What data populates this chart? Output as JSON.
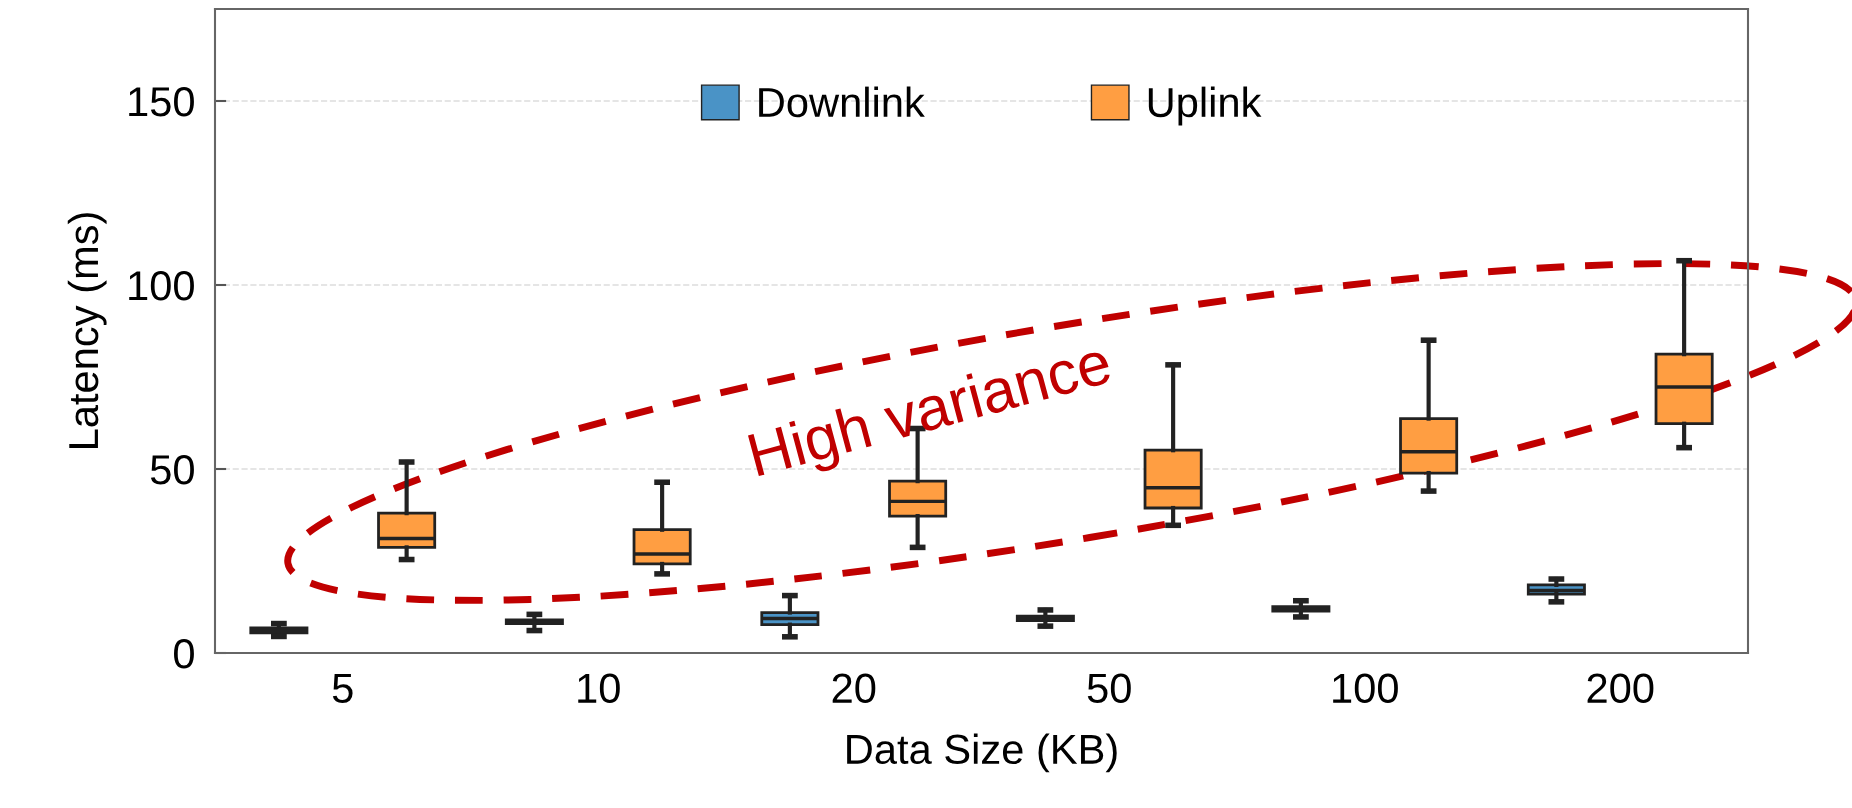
{
  "chart_data": {
    "type": "box",
    "xlabel": "Data Size (KB)",
    "ylabel": "Latency (ms)",
    "categories": [
      "5",
      "10",
      "20",
      "50",
      "100",
      "200"
    ],
    "ylim": [
      0,
      175
    ],
    "yticks": [
      0,
      50,
      100,
      150
    ],
    "grid": "y",
    "legend": "top",
    "annotations": [
      "High variance"
    ],
    "series": [
      {
        "name": "Downlink",
        "color": "#4a93c6",
        "boxes": [
          {
            "low": 4.5,
            "q1": 5.5,
            "median": 6.2,
            "q3": 6.8,
            "high": 8.0
          },
          {
            "low": 6.1,
            "q1": 8.0,
            "median": 8.4,
            "q3": 9.0,
            "high": 10.5
          },
          {
            "low": 4.4,
            "q1": 7.7,
            "median": 9.4,
            "q3": 11.0,
            "high": 15.6
          },
          {
            "low": 7.3,
            "q1": 8.8,
            "median": 9.3,
            "q3": 10.0,
            "high": 11.7
          },
          {
            "low": 9.8,
            "q1": 11.4,
            "median": 12.0,
            "q3": 12.6,
            "high": 14.2
          },
          {
            "low": 13.9,
            "q1": 16.0,
            "median": 17.0,
            "q3": 18.5,
            "high": 20.1
          }
        ]
      },
      {
        "name": "Uplink",
        "color": "#ff9e42",
        "boxes": [
          {
            "low": 25.4,
            "q1": 28.7,
            "median": 31.1,
            "q3": 38.0,
            "high": 51.9
          },
          {
            "low": 21.5,
            "q1": 24.2,
            "median": 26.9,
            "q3": 33.5,
            "high": 46.4
          },
          {
            "low": 28.7,
            "q1": 37.2,
            "median": 41.2,
            "q3": 46.7,
            "high": 61.0
          },
          {
            "low": 34.7,
            "q1": 39.4,
            "median": 44.9,
            "q3": 55.1,
            "high": 78.3
          },
          {
            "low": 44.0,
            "q1": 48.9,
            "median": 54.7,
            "q3": 63.7,
            "high": 85.0
          },
          {
            "low": 55.8,
            "q1": 62.3,
            "median": 72.3,
            "q3": 81.2,
            "high": 106.6
          }
        ]
      }
    ]
  }
}
